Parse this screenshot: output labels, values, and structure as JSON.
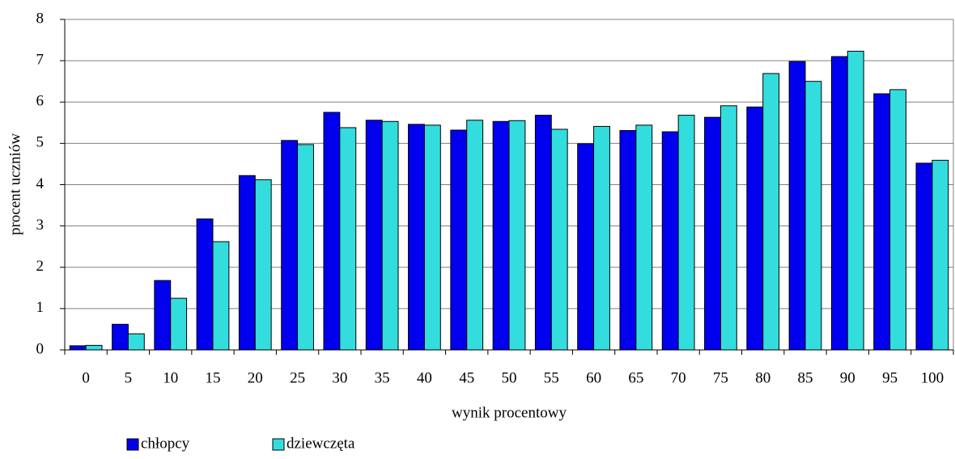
{
  "chart_data": {
    "type": "bar",
    "x_label": "wynik procentowy",
    "y_label": "procent uczniów",
    "categories": [
      "0",
      "5",
      "10",
      "15",
      "20",
      "25",
      "30",
      "35",
      "40",
      "45",
      "50",
      "55",
      "60",
      "65",
      "70",
      "75",
      "80",
      "85",
      "90",
      "95",
      "100"
    ],
    "series": [
      {
        "name": "chłopcy",
        "color": "#0000ee",
        "values": [
          0.1,
          0.62,
          1.68,
          3.17,
          4.22,
          5.07,
          5.75,
          5.56,
          5.46,
          5.32,
          5.53,
          5.68,
          4.99,
          5.31,
          5.28,
          5.63,
          5.88,
          6.98,
          7.1,
          6.2,
          4.52
        ]
      },
      {
        "name": "dziewczęta",
        "color": "#33dddd",
        "values": [
          0.11,
          0.39,
          1.25,
          2.62,
          4.12,
          4.97,
          5.38,
          5.53,
          5.44,
          5.56,
          5.55,
          5.34,
          5.41,
          5.44,
          5.68,
          5.91,
          6.69,
          6.5,
          7.23,
          6.3,
          4.59
        ]
      }
    ],
    "ylim": [
      0,
      8
    ],
    "yticks": [
      0,
      1,
      2,
      3,
      4,
      5,
      6,
      7,
      8
    ],
    "grid": true,
    "legend": "bottom-left"
  }
}
